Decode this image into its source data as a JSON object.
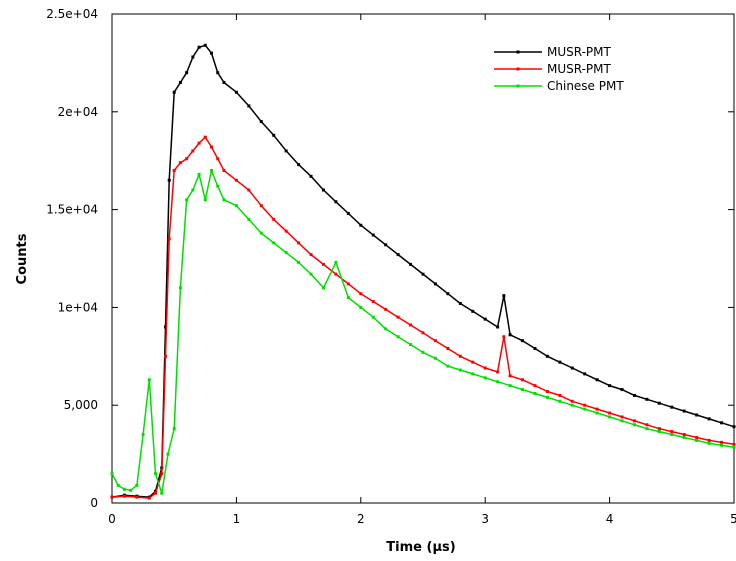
{
  "chart_data": {
    "type": "line",
    "title": "",
    "xlabel": "Time (μs)",
    "ylabel": "Counts",
    "xlim": [
      0,
      5
    ],
    "ylim": [
      0,
      25000
    ],
    "x_ticks": [
      0,
      1,
      2,
      3,
      4,
      5
    ],
    "x_tick_labels": [
      "0",
      "1",
      "2",
      "3",
      "4",
      "5"
    ],
    "y_ticks": [
      0,
      5000,
      10000,
      15000,
      20000,
      25000
    ],
    "y_tick_labels": [
      "0",
      "5,000",
      "1e+04",
      "1.5e+04",
      "2e+04",
      "2.5e+04"
    ],
    "grid": false,
    "legend_position": "top-right",
    "series": [
      {
        "name": "MUSR-PMT",
        "color": "#000000",
        "x": [
          0.0,
          0.1,
          0.2,
          0.3,
          0.35,
          0.4,
          0.43,
          0.46,
          0.5,
          0.55,
          0.6,
          0.65,
          0.7,
          0.75,
          0.8,
          0.85,
          0.9,
          1.0,
          1.1,
          1.2,
          1.3,
          1.4,
          1.5,
          1.6,
          1.7,
          1.8,
          1.9,
          2.0,
          2.1,
          2.2,
          2.3,
          2.4,
          2.5,
          2.6,
          2.7,
          2.8,
          2.9,
          3.0,
          3.1,
          3.15,
          3.2,
          3.3,
          3.4,
          3.5,
          3.6,
          3.7,
          3.8,
          3.9,
          4.0,
          4.1,
          4.2,
          4.3,
          4.4,
          4.5,
          4.6,
          4.7,
          4.8,
          4.9,
          5.0
        ],
        "y": [
          300,
          400,
          350,
          300,
          600,
          1800,
          9000,
          16500,
          21000,
          21500,
          22000,
          22800,
          23300,
          23400,
          23000,
          22000,
          21500,
          21000,
          20300,
          19500,
          18800,
          18000,
          17300,
          16700,
          16000,
          15400,
          14800,
          14200,
          13700,
          13200,
          12700,
          12200,
          11700,
          11200,
          10700,
          10200,
          9800,
          9400,
          9000,
          10600,
          8600,
          8300,
          7900,
          7500,
          7200,
          6900,
          6600,
          6300,
          6000,
          5800,
          5500,
          5300,
          5100,
          4900,
          4700,
          4500,
          4300,
          4100,
          3900
        ]
      },
      {
        "name": "MUSR-PMT",
        "color": "#ff0000",
        "x": [
          0.0,
          0.1,
          0.2,
          0.3,
          0.35,
          0.4,
          0.43,
          0.46,
          0.5,
          0.55,
          0.6,
          0.65,
          0.7,
          0.75,
          0.8,
          0.85,
          0.9,
          1.0,
          1.1,
          1.2,
          1.3,
          1.4,
          1.5,
          1.6,
          1.7,
          1.8,
          1.9,
          2.0,
          2.1,
          2.2,
          2.3,
          2.4,
          2.5,
          2.6,
          2.7,
          2.8,
          2.9,
          3.0,
          3.1,
          3.15,
          3.2,
          3.3,
          3.4,
          3.5,
          3.6,
          3.7,
          3.8,
          3.9,
          4.0,
          4.1,
          4.2,
          4.3,
          4.4,
          4.5,
          4.6,
          4.7,
          4.8,
          4.9,
          5.0
        ],
        "y": [
          300,
          350,
          300,
          250,
          500,
          1500,
          7500,
          13500,
          17000,
          17400,
          17600,
          18000,
          18400,
          18700,
          18200,
          17600,
          17000,
          16500,
          16000,
          15200,
          14500,
          13900,
          13300,
          12700,
          12200,
          11700,
          11200,
          10700,
          10300,
          9900,
          9500,
          9100,
          8700,
          8300,
          7900,
          7500,
          7200,
          6900,
          6700,
          8500,
          6500,
          6300,
          6000,
          5700,
          5500,
          5200,
          5000,
          4800,
          4600,
          4400,
          4200,
          4000,
          3800,
          3650,
          3500,
          3350,
          3200,
          3100,
          3000
        ]
      },
      {
        "name": "Chinese PMT",
        "color": "#00e000",
        "x": [
          0.0,
          0.05,
          0.1,
          0.15,
          0.2,
          0.25,
          0.3,
          0.35,
          0.4,
          0.45,
          0.5,
          0.55,
          0.6,
          0.65,
          0.7,
          0.75,
          0.8,
          0.85,
          0.9,
          1.0,
          1.1,
          1.2,
          1.3,
          1.4,
          1.5,
          1.6,
          1.7,
          1.8,
          1.9,
          2.0,
          2.1,
          2.2,
          2.3,
          2.4,
          2.5,
          2.6,
          2.7,
          2.8,
          2.9,
          3.0,
          3.1,
          3.2,
          3.3,
          3.4,
          3.5,
          3.6,
          3.7,
          3.8,
          3.9,
          4.0,
          4.1,
          4.2,
          4.3,
          4.4,
          4.5,
          4.6,
          4.7,
          4.8,
          4.9,
          5.0
        ],
        "y": [
          1500,
          900,
          700,
          650,
          900,
          3500,
          6300,
          1500,
          500,
          2500,
          3800,
          11000,
          15500,
          16000,
          16800,
          15500,
          17000,
          16200,
          15500,
          15200,
          14500,
          13800,
          13300,
          12800,
          12300,
          11700,
          11000,
          12300,
          10500,
          10000,
          9500,
          8900,
          8500,
          8100,
          7700,
          7400,
          7000,
          6800,
          6600,
          6400,
          6200,
          6000,
          5800,
          5600,
          5400,
          5200,
          5000,
          4800,
          4600,
          4400,
          4200,
          4000,
          3800,
          3650,
          3500,
          3350,
          3200,
          3050,
          2950,
          2850
        ]
      }
    ]
  }
}
